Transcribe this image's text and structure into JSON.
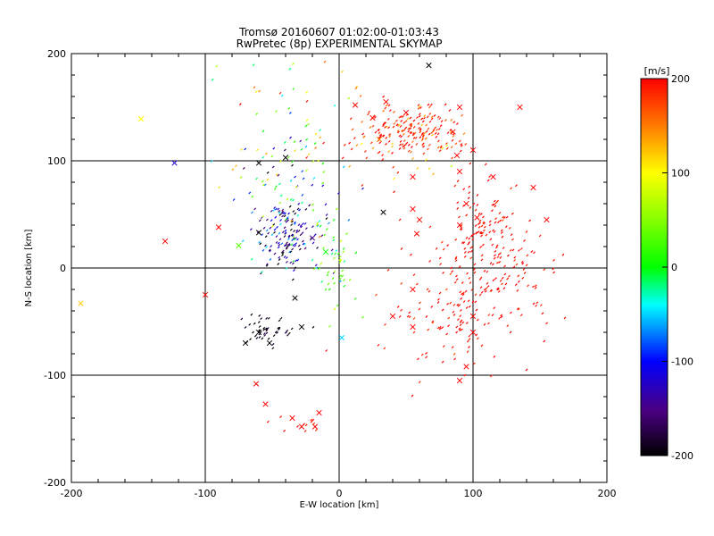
{
  "chart_data": {
    "type": "scatter",
    "title": "Tromsø 20160607 01:02:00-01:03:43",
    "subtitle": "RwPretec (8p) EXPERIMENTAL SKYMAP",
    "xlabel": "E-W location [km]",
    "ylabel": "N-S location [km]",
    "xlim": [
      -200,
      200
    ],
    "ylim": [
      -200,
      200
    ],
    "xticks": [
      "-200",
      "-100",
      "0",
      "100",
      "200"
    ],
    "yticks": [
      "-200",
      "-100",
      "0",
      "100",
      "200"
    ],
    "grid": true,
    "grid_lines": [
      -100,
      0,
      100
    ],
    "colorbar": {
      "label": "[m/s]",
      "range": [
        -200,
        200
      ],
      "ticks": [
        "-200",
        "-100",
        "0",
        "100",
        "200"
      ],
      "colormap": "rainbow",
      "position": "right"
    },
    "clusters": [
      {
        "center": [
          55,
          128
        ],
        "spread": [
          18,
          12
        ],
        "count": 170,
        "velocity": 190,
        "vspread": 20
      },
      {
        "center": [
          40,
          120
        ],
        "spread": [
          22,
          18
        ],
        "count": 60,
        "velocity": 150,
        "vspread": 40
      },
      {
        "center": [
          105,
          40
        ],
        "spread": [
          15,
          22
        ],
        "count": 110,
        "velocity": 195,
        "vspread": 10
      },
      {
        "center": [
          90,
          -35
        ],
        "spread": [
          30,
          28
        ],
        "count": 170,
        "velocity": 195,
        "vspread": 10
      },
      {
        "center": [
          125,
          5
        ],
        "spread": [
          20,
          25
        ],
        "count": 50,
        "velocity": 195,
        "vspread": 10
      },
      {
        "center": [
          -38,
          30
        ],
        "spread": [
          12,
          16
        ],
        "count": 150,
        "velocity": -140,
        "vspread": 55
      },
      {
        "center": [
          -35,
          75
        ],
        "spread": [
          20,
          28
        ],
        "count": 90,
        "velocity": -30,
        "vspread": 90
      },
      {
        "center": [
          -55,
          -58
        ],
        "spread": [
          10,
          8
        ],
        "count": 50,
        "velocity": -195,
        "vspread": 10
      },
      {
        "center": [
          -5,
          5
        ],
        "spread": [
          10,
          20
        ],
        "count": 50,
        "velocity": 20,
        "vspread": 40
      },
      {
        "center": [
          -30,
          -145
        ],
        "spread": [
          10,
          5
        ],
        "count": 12,
        "velocity": 195,
        "vspread": 10
      },
      {
        "center": [
          -40,
          140
        ],
        "spread": [
          30,
          35
        ],
        "count": 40,
        "velocity": 60,
        "vspread": 80
      }
    ],
    "cross_markers": [
      [
        67,
        189,
        -200
      ],
      [
        90,
        150,
        200
      ],
      [
        135,
        150,
        200
      ],
      [
        35,
        155,
        200
      ],
      [
        12,
        152,
        200
      ],
      [
        25,
        140,
        200
      ],
      [
        50,
        145,
        200
      ],
      [
        85,
        127,
        200
      ],
      [
        -123,
        98,
        -120
      ],
      [
        -148,
        139,
        100
      ],
      [
        -130,
        25,
        200
      ],
      [
        -90,
        38,
        200
      ],
      [
        -100,
        -25,
        200
      ],
      [
        -60,
        33,
        -200
      ],
      [
        -60,
        98,
        -200
      ],
      [
        -40,
        103,
        -200
      ],
      [
        -75,
        21,
        30
      ],
      [
        -70,
        -70,
        -200
      ],
      [
        -52,
        -70,
        -200
      ],
      [
        -60,
        -60,
        -200
      ],
      [
        -28,
        -55,
        -200
      ],
      [
        -33,
        -28,
        -200
      ],
      [
        -20,
        28,
        -150
      ],
      [
        -10,
        15,
        0
      ],
      [
        -62,
        -108,
        200
      ],
      [
        -55,
        -127,
        200
      ],
      [
        -35,
        -140,
        200
      ],
      [
        -28,
        -148,
        200
      ],
      [
        -18,
        -148,
        200
      ],
      [
        -15,
        -135,
        200
      ],
      [
        2,
        -65,
        -50
      ],
      [
        33,
        52,
        -200
      ],
      [
        55,
        85,
        200
      ],
      [
        55,
        55,
        200
      ],
      [
        58,
        32,
        200
      ],
      [
        60,
        45,
        200
      ],
      [
        55,
        -20,
        200
      ],
      [
        40,
        -45,
        200
      ],
      [
        90,
        90,
        200
      ],
      [
        95,
        60,
        200
      ],
      [
        90,
        40,
        200
      ],
      [
        103,
        47,
        200
      ],
      [
        100,
        -45,
        200
      ],
      [
        115,
        85,
        200
      ],
      [
        145,
        75,
        200
      ],
      [
        155,
        45,
        200
      ],
      [
        90,
        -105,
        200
      ],
      [
        95,
        -92,
        200
      ],
      [
        100,
        -60,
        200
      ],
      [
        88,
        105,
        200
      ],
      [
        100,
        110,
        200
      ],
      [
        -193,
        -33,
        120
      ],
      [
        55,
        -55,
        200
      ],
      [
        30,
        120,
        150
      ]
    ]
  }
}
